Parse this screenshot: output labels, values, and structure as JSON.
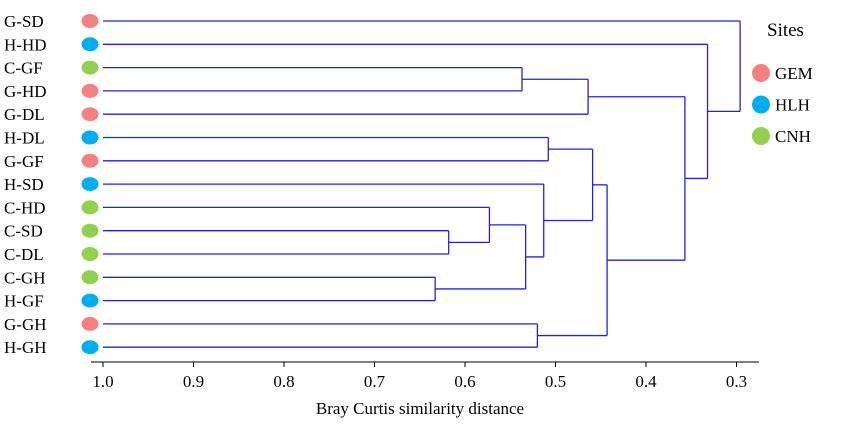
{
  "chart_data": {
    "type": "dendrogram",
    "xlabel": "Bray Curtis similarity  distance",
    "xlim": [
      1.0,
      0.28
    ],
    "ticks": [
      "1.0",
      "0.9",
      "0.8",
      "0.7",
      "0.6",
      "0.5",
      "0.4",
      "0.3"
    ],
    "tick_values": [
      1.0,
      0.9,
      0.8,
      0.7,
      0.6,
      0.5,
      0.4,
      0.3
    ],
    "legend": {
      "title": "Sites",
      "placement": "right",
      "entries": [
        {
          "label": "GEM",
          "group": "GEM"
        },
        {
          "label": "HLH",
          "group": "HLH"
        },
        {
          "label": "CNH",
          "group": "CNH"
        }
      ]
    },
    "group_colors": {
      "GEM": "#f48181",
      "HLH": "#00aeef",
      "CNH": "#92d050"
    },
    "branch_color": "#2222dd",
    "leaves": [
      {
        "label": "G-SD",
        "group": "GEM"
      },
      {
        "label": "H-HD",
        "group": "HLH"
      },
      {
        "label": "C-GF",
        "group": "CNH"
      },
      {
        "label": "G-HD",
        "group": "GEM"
      },
      {
        "label": "G-DL",
        "group": "GEM"
      },
      {
        "label": "H-DL",
        "group": "HLH"
      },
      {
        "label": "G-GF",
        "group": "GEM"
      },
      {
        "label": "H-SD",
        "group": "HLH"
      },
      {
        "label": "C-HD",
        "group": "CNH"
      },
      {
        "label": "C-SD",
        "group": "CNH"
      },
      {
        "label": "C-DL",
        "group": "CNH"
      },
      {
        "label": "C-GH",
        "group": "CNH"
      },
      {
        "label": "H-GF",
        "group": "HLH"
      },
      {
        "label": "G-GH",
        "group": "GEM"
      },
      {
        "label": "H-GH",
        "group": "HLH"
      }
    ],
    "merges": [
      {
        "id": "m1",
        "children": [
          "C-GF",
          "G-HD"
        ],
        "height": 0.537
      },
      {
        "id": "m2",
        "children": [
          "m1",
          "G-DL"
        ],
        "height": 0.464
      },
      {
        "id": "m3",
        "children": [
          "H-DL",
          "G-GF"
        ],
        "height": 0.508
      },
      {
        "id": "m4",
        "children": [
          "C-SD",
          "C-DL"
        ],
        "height": 0.618
      },
      {
        "id": "m5",
        "children": [
          "C-HD",
          "m4"
        ],
        "height": 0.573
      },
      {
        "id": "m6",
        "children": [
          "C-GH",
          "H-GF"
        ],
        "height": 0.633
      },
      {
        "id": "m7",
        "children": [
          "m5",
          "m6"
        ],
        "height": 0.533
      },
      {
        "id": "m8",
        "children": [
          "H-SD",
          "m7"
        ],
        "height": 0.513
      },
      {
        "id": "m9",
        "children": [
          "m3",
          "m8"
        ],
        "height": 0.459
      },
      {
        "id": "m10",
        "children": [
          "G-GH",
          "H-GH"
        ],
        "height": 0.52
      },
      {
        "id": "m11",
        "children": [
          "m9",
          "m10"
        ],
        "height": 0.443
      },
      {
        "id": "m12",
        "children": [
          "m2",
          "m11"
        ],
        "height": 0.357
      },
      {
        "id": "m13",
        "children": [
          "H-HD",
          "m12"
        ],
        "height": 0.332
      },
      {
        "id": "m14",
        "children": [
          "G-SD",
          "m13"
        ],
        "height": 0.296
      }
    ]
  }
}
